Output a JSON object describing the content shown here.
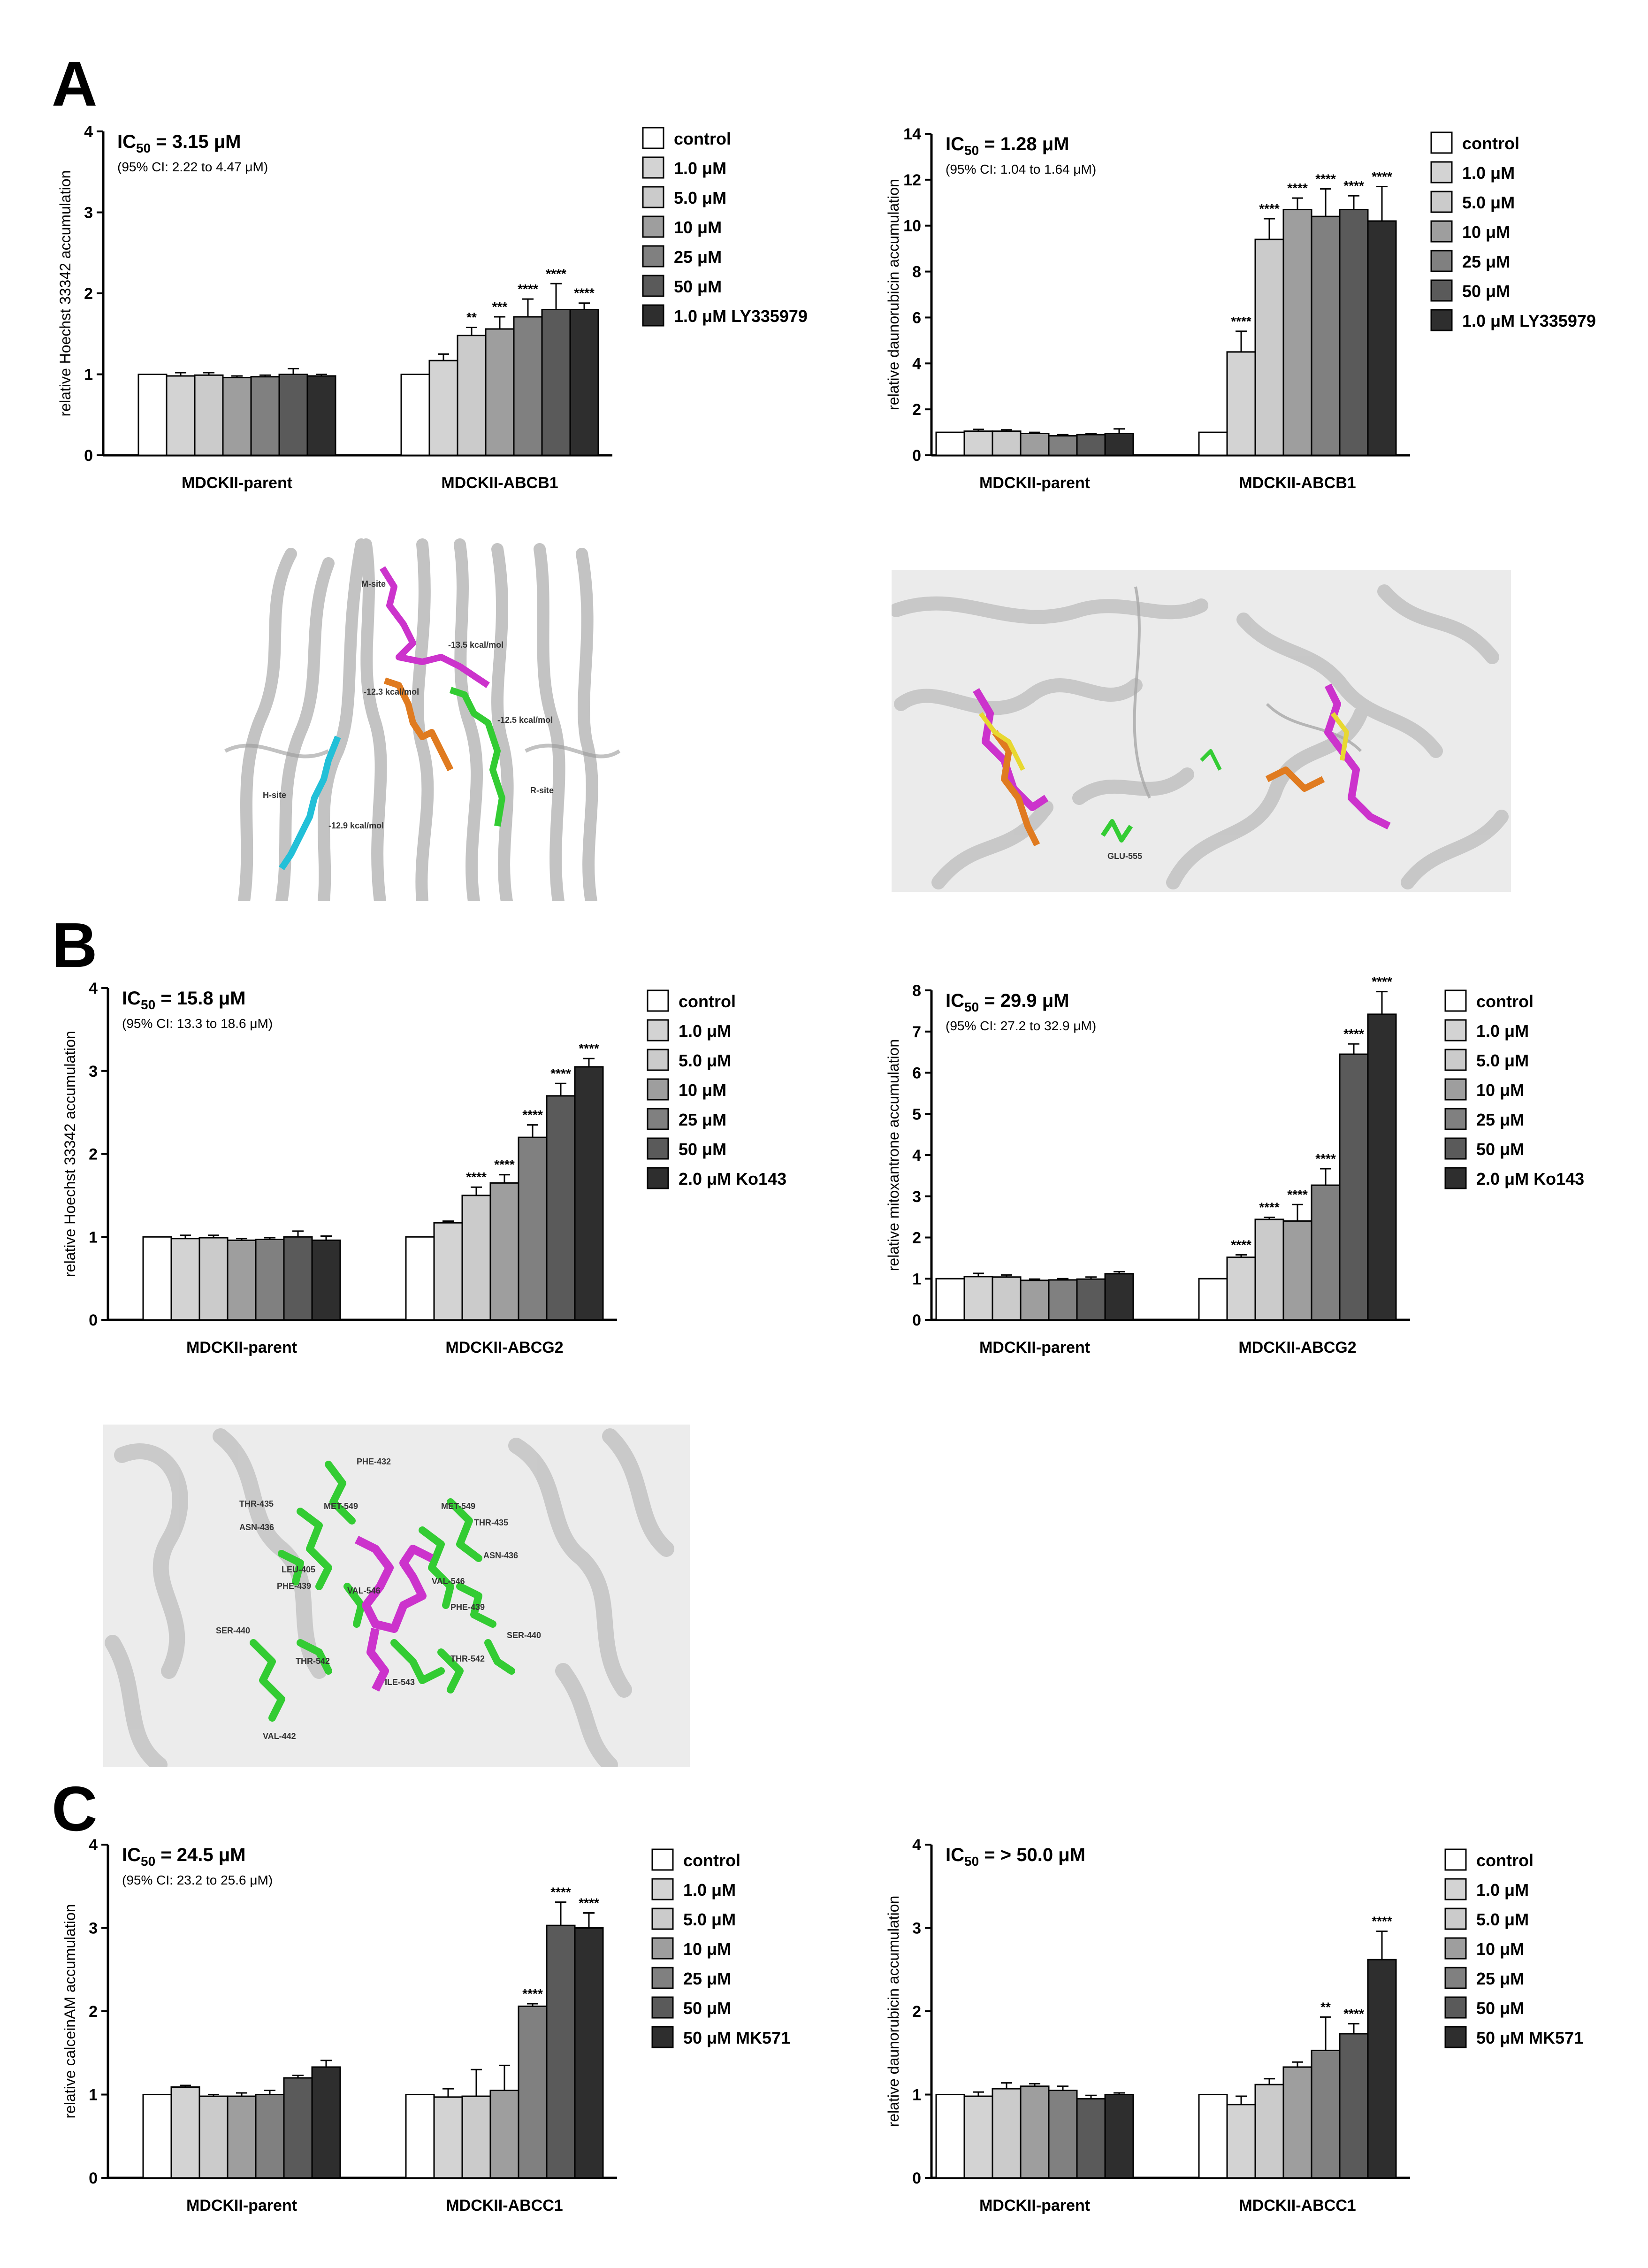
{
  "panel_labels": [
    "A",
    "B",
    "C"
  ],
  "colors": {
    "series": [
      "#ffffff",
      "#d3d3d3",
      "#cbcbcb",
      "#9e9e9e",
      "#808080",
      "#5a5a5a",
      "#2e2e2e"
    ],
    "bar_stroke": "#000000",
    "docking_magenta": "#cc33cc",
    "docking_orange": "#e07b20",
    "docking_green": "#33cc33",
    "docking_cyan": "#22c0d8",
    "docking_yellow": "#e8d830"
  },
  "docking_panels": [
    {
      "id": "abcb1-side",
      "labels": [
        "M-site",
        "H-site",
        "R-site",
        "-13.5 kcal/mol",
        "-12.3 kcal/mol",
        "-12.5 kcal/mol",
        "-12.9 kcal/mol"
      ]
    },
    {
      "id": "abcb1-top",
      "labels": [
        "GLU-555"
      ]
    },
    {
      "id": "abcg2-site",
      "labels": [
        "PHE-432",
        "THR-435",
        "MET-549",
        "MET-549",
        "THR-435",
        "ASN-436",
        "ASN-436",
        "LEU-405",
        "VAL-546",
        "VAL-546",
        "PHE-439",
        "PHE-439",
        "SER-440",
        "SER-440",
        "THR-542",
        "THR-542",
        "ILE-543",
        "VAL-442"
      ]
    }
  ],
  "chart_data": [
    {
      "id": "A-left",
      "type": "bar",
      "ic50": "3.15 μM",
      "ci": "(95% CI: 2.22 to 4.47 μM)",
      "ylabel": "relative Hoechst 33342 accumulation",
      "ylim": [
        0,
        4
      ],
      "yticks": [
        0,
        1,
        2,
        3,
        4
      ],
      "categories": [
        "MDCKII-parent",
        "MDCKII-ABCB1"
      ],
      "legend": [
        "control",
        "1.0 μM",
        "5.0 μM",
        "10 μM",
        "25 μM",
        "50 μM",
        "1.0 μM LY335979"
      ],
      "values": [
        [
          1.0,
          0.98,
          0.99,
          0.96,
          0.97,
          1.0,
          0.98
        ],
        [
          1.0,
          1.17,
          1.48,
          1.56,
          1.71,
          1.8,
          1.8
        ]
      ],
      "errors": [
        [
          0,
          0.04,
          0.03,
          0.02,
          0.02,
          0.07,
          0.02
        ],
        [
          0,
          0.08,
          0.1,
          0.15,
          0.22,
          0.32,
          0.08
        ]
      ],
      "significance": [
        [
          "",
          "",
          "",
          "",
          "",
          "",
          ""
        ],
        [
          "",
          "",
          "**",
          "***",
          "****",
          "****",
          "****"
        ]
      ]
    },
    {
      "id": "A-right",
      "type": "bar",
      "ic50": "1.28 μM",
      "ci": "(95% CI: 1.04 to 1.64 μM)",
      "ylabel": "relative daunorubicin accumulation",
      "ylim": [
        0,
        14
      ],
      "yticks": [
        0,
        2,
        4,
        6,
        8,
        10,
        12,
        14
      ],
      "categories": [
        "MDCKII-parent",
        "MDCKII-ABCB1"
      ],
      "legend": [
        "control",
        "1.0 μM",
        "5.0 μM",
        "10 μM",
        "25 μM",
        "50 μM",
        "1.0 μM LY335979"
      ],
      "values": [
        [
          1.0,
          1.05,
          1.05,
          0.95,
          0.85,
          0.9,
          0.95
        ],
        [
          1.0,
          4.5,
          9.4,
          10.7,
          10.4,
          10.7,
          10.2
        ]
      ],
      "errors": [
        [
          0,
          0.08,
          0.06,
          0.05,
          0.05,
          0.05,
          0.2
        ],
        [
          0,
          0.9,
          0.9,
          0.5,
          1.2,
          0.6,
          1.5
        ]
      ],
      "significance": [
        [
          "",
          "",
          "",
          "",
          "",
          "",
          ""
        ],
        [
          "",
          "****",
          "****",
          "****",
          "****",
          "****",
          "****"
        ]
      ]
    },
    {
      "id": "B-left",
      "type": "bar",
      "ic50": "15.8 μM",
      "ci": "(95% CI: 13.3 to 18.6 μM)",
      "ylabel": "relative Hoechst 33342 accumulation",
      "ylim": [
        0,
        4
      ],
      "yticks": [
        0,
        1,
        2,
        3,
        4
      ],
      "categories": [
        "MDCKII-parent",
        "MDCKII-ABCG2"
      ],
      "legend": [
        "control",
        "1.0 μM",
        "5.0 μM",
        "10 μM",
        "25 μM",
        "50 μM",
        "2.0 μM Ko143"
      ],
      "values": [
        [
          1.0,
          0.98,
          0.99,
          0.96,
          0.97,
          1.0,
          0.96
        ],
        [
          1.0,
          1.17,
          1.5,
          1.65,
          2.2,
          2.7,
          3.05
        ]
      ],
      "errors": [
        [
          0,
          0.04,
          0.03,
          0.02,
          0.02,
          0.07,
          0.05
        ],
        [
          0,
          0.02,
          0.1,
          0.1,
          0.15,
          0.15,
          0.1
        ]
      ],
      "significance": [
        [
          "",
          "",
          "",
          "",
          "",
          "",
          ""
        ],
        [
          "",
          "",
          "****",
          "****",
          "****",
          "****",
          "****"
        ]
      ]
    },
    {
      "id": "B-right",
      "type": "bar",
      "ic50": "29.9 μM",
      "ci": "(95% CI: 27.2 to 32.9 μM)",
      "ylabel": "relative mitoxantrone accumulation",
      "ylim": [
        0,
        8
      ],
      "yticks": [
        0,
        1,
        2,
        3,
        4,
        5,
        6,
        7,
        8
      ],
      "categories": [
        "MDCKII-parent",
        "MDCKII-ABCG2"
      ],
      "legend": [
        "control",
        "1.0 μM",
        "5.0 μM",
        "10 μM",
        "25 μM",
        "50 μM",
        "2.0 μM Ko143"
      ],
      "values": [
        [
          1.0,
          1.05,
          1.04,
          0.96,
          0.97,
          0.99,
          1.12
        ],
        [
          1.0,
          1.52,
          2.44,
          2.4,
          3.27,
          6.45,
          7.42
        ]
      ],
      "errors": [
        [
          0,
          0.08,
          0.05,
          0.03,
          0.03,
          0.05,
          0.05
        ],
        [
          0,
          0.06,
          0.05,
          0.4,
          0.4,
          0.25,
          0.55
        ]
      ],
      "significance": [
        [
          "",
          "",
          "",
          "",
          "",
          "",
          ""
        ],
        [
          "",
          "****",
          "****",
          "****",
          "****",
          "****",
          "****"
        ]
      ]
    },
    {
      "id": "C-left",
      "type": "bar",
      "ic50": "24.5 μM",
      "ci": "(95% CI: 23.2 to 25.6 μM)",
      "ylabel": "relative calceinAM accumulation",
      "ylim": [
        0,
        4
      ],
      "yticks": [
        0,
        1,
        2,
        3,
        4
      ],
      "categories": [
        "MDCKII-parent",
        "MDCKII-ABCC1"
      ],
      "legend": [
        "control",
        "1.0 μM",
        "5.0 μM",
        "10 μM",
        "25 μM",
        "50 μM",
        "50 μM MK571"
      ],
      "values": [
        [
          1.0,
          1.09,
          0.98,
          0.98,
          1.0,
          1.2,
          1.33
        ],
        [
          1.0,
          0.97,
          0.98,
          1.05,
          2.06,
          3.03,
          3.0
        ]
      ],
      "errors": [
        [
          0,
          0.02,
          0.02,
          0.04,
          0.05,
          0.03,
          0.08
        ],
        [
          0,
          0.1,
          0.32,
          0.3,
          0.03,
          0.28,
          0.18
        ]
      ],
      "significance": [
        [
          "",
          "",
          "",
          "",
          "",
          "",
          ""
        ],
        [
          "",
          "",
          "",
          "",
          "****",
          "****",
          "****"
        ]
      ]
    },
    {
      "id": "C-right",
      "type": "bar",
      "ic50": "> 50.0 μM",
      "ci": "",
      "ylabel": "relative daunorubicin accumulation",
      "ylim": [
        0,
        4
      ],
      "yticks": [
        0,
        1,
        2,
        3,
        4
      ],
      "categories": [
        "MDCKII-parent",
        "MDCKII-ABCC1"
      ],
      "legend": [
        "control",
        "1.0 μM",
        "5.0 μM",
        "10 μM",
        "25 μM",
        "50 μM",
        "50 μM MK571"
      ],
      "values": [
        [
          1.0,
          0.98,
          1.07,
          1.1,
          1.05,
          0.95,
          1.0
        ],
        [
          1.0,
          0.88,
          1.12,
          1.33,
          1.53,
          1.73,
          2.62
        ]
      ],
      "errors": [
        [
          0,
          0.05,
          0.07,
          0.03,
          0.05,
          0.04,
          0.02
        ],
        [
          0,
          0.1,
          0.07,
          0.06,
          0.4,
          0.12,
          0.34
        ]
      ],
      "significance": [
        [
          "",
          "",
          "",
          "",
          "",
          "",
          ""
        ],
        [
          "",
          "",
          "",
          "",
          "**",
          "****",
          "****"
        ]
      ]
    }
  ]
}
